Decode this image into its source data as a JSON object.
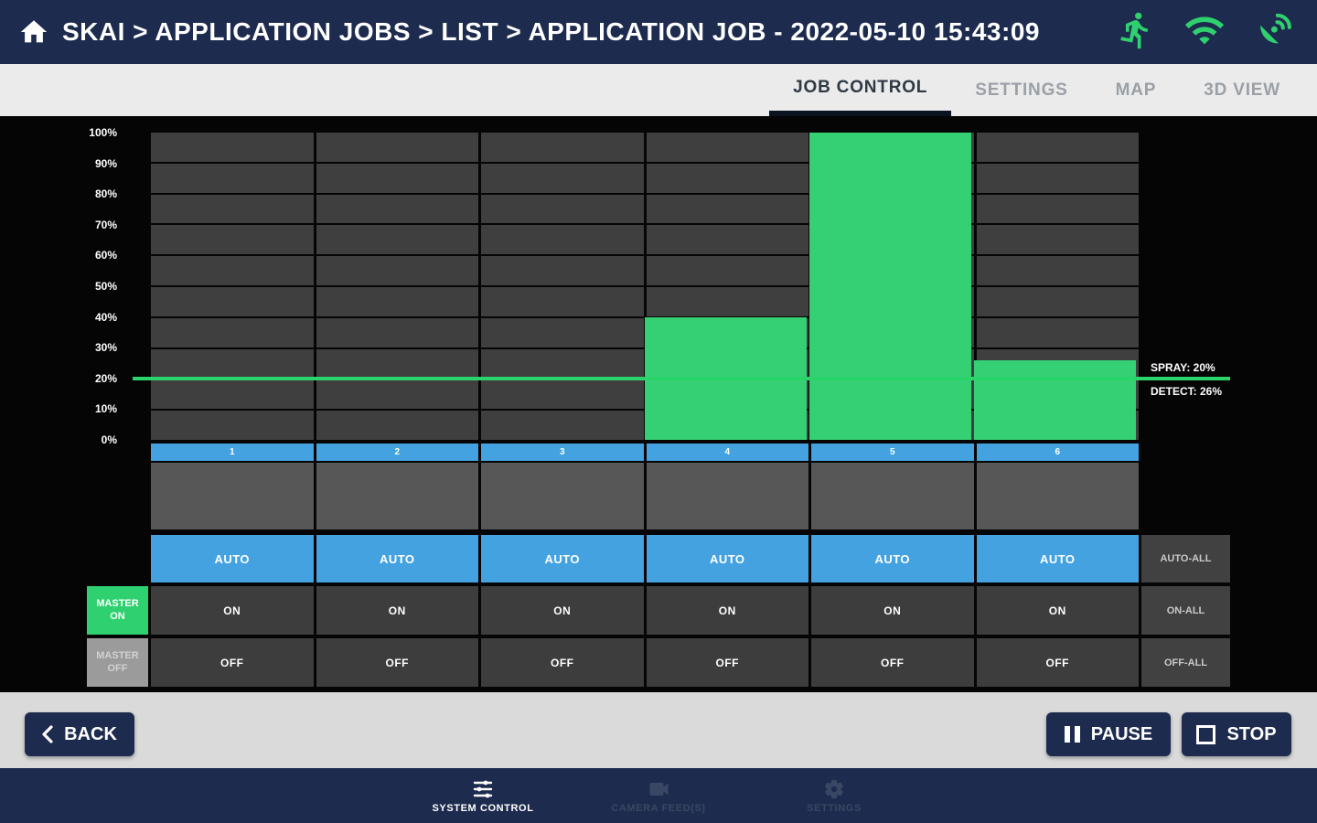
{
  "topbar": {
    "breadcrumb": "SKAI > APPLICATION JOBS > LIST > APPLICATION JOB - 2022-05-10 15:43:09",
    "status_icons": [
      "home-icon",
      "runner-status-icon",
      "wifi-status-icon",
      "satellite-status-icon"
    ],
    "icon_color": "#2fd06e"
  },
  "tabs": [
    {
      "label": "JOB CONTROL",
      "active": true
    },
    {
      "label": "SETTINGS",
      "active": false
    },
    {
      "label": "MAP",
      "active": false
    },
    {
      "label": "3D VIEW",
      "active": false
    }
  ],
  "chart_data": {
    "type": "bar",
    "categories": [
      "1",
      "2",
      "3",
      "4",
      "5",
      "6"
    ],
    "values": [
      0,
      0,
      0,
      40,
      100,
      26
    ],
    "ylabel_ticks": [
      "100%",
      "90%",
      "80%",
      "70%",
      "60%",
      "50%",
      "40%",
      "30%",
      "20%",
      "10%",
      "0%"
    ],
    "ylim": [
      0,
      100
    ],
    "spray_threshold": 20,
    "annotations": [
      {
        "text": "SPRAY: 20%"
      },
      {
        "text": "DETECT: 26%"
      }
    ],
    "bar_color": "#35d073",
    "grid_cell_color": "#3f3f3f",
    "legend": "none"
  },
  "controls": {
    "auto_label": "AUTO",
    "on_label": "ON",
    "off_label": "OFF",
    "auto_all_label": "AUTO-ALL",
    "on_all_label": "ON-ALL",
    "off_all_label": "OFF-ALL",
    "master_on_label": "MASTER ON",
    "master_off_label": "MASTER OFF",
    "channel_button_color": "#44a2e0",
    "master_on_color": "#2ed06f"
  },
  "footer": {
    "back_label": "BACK",
    "pause_label": "PAUSE",
    "stop_label": "STOP",
    "button_color": "#1d2b4e"
  },
  "bottom_nav": [
    {
      "label": "SYSTEM CONTROL",
      "active": true
    },
    {
      "label": "CAMERA FEED(S)",
      "active": false
    },
    {
      "label": "SETTINGS",
      "active": false
    }
  ]
}
